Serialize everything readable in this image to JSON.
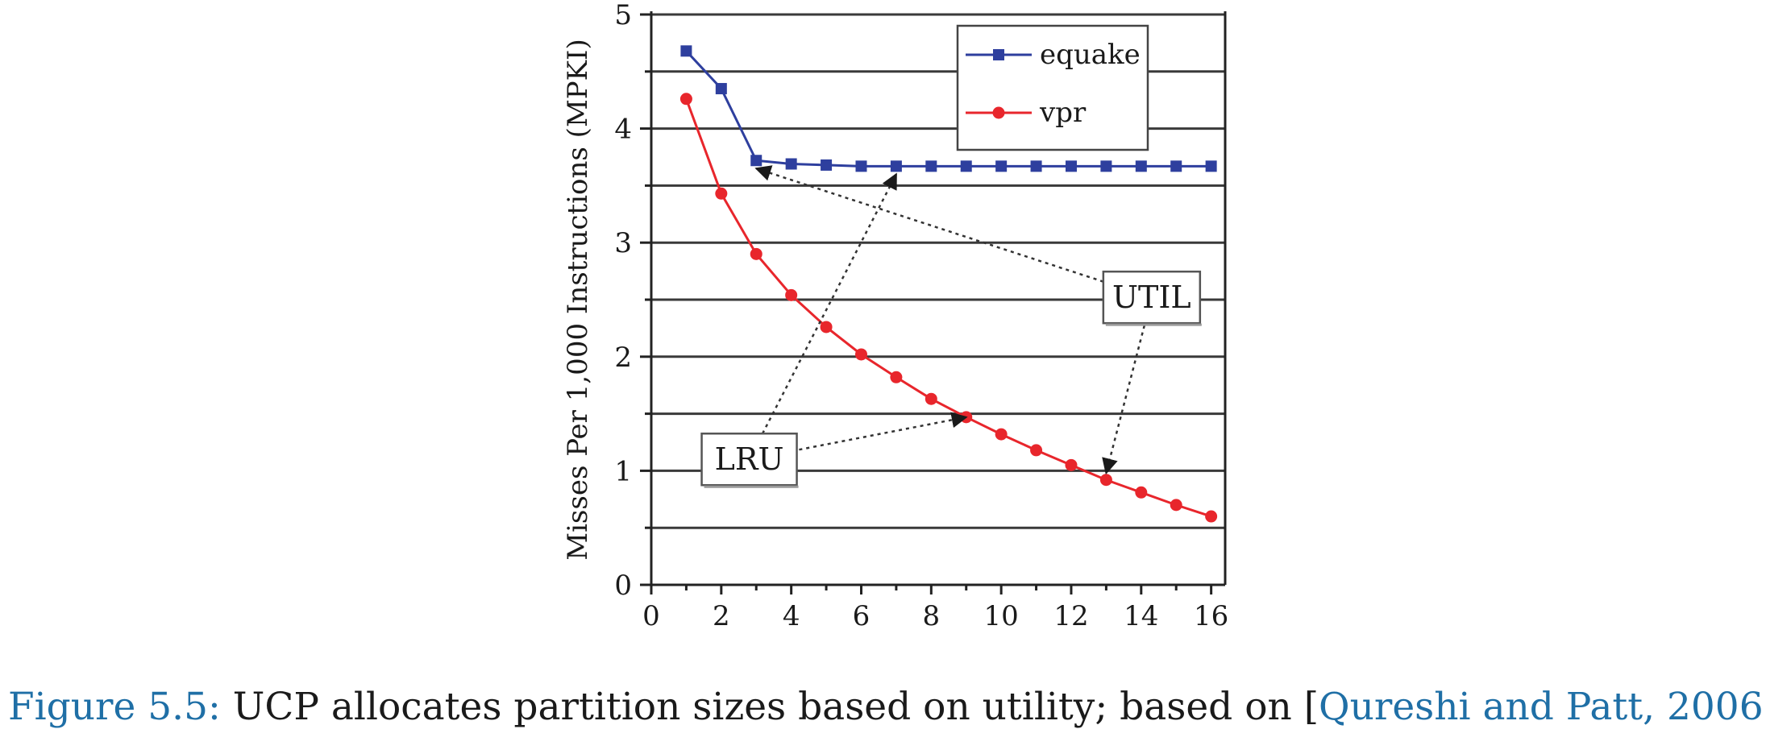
{
  "chart_data": {
    "type": "line",
    "title": "",
    "xlabel": "",
    "ylabel": "Misses Per 1,000 Instructions (MPKI)",
    "xlim": [
      0,
      16.4
    ],
    "ylim": [
      0,
      5
    ],
    "x_ticks": [
      0,
      2,
      4,
      6,
      8,
      10,
      12,
      14,
      16
    ],
    "y_ticks": [
      0,
      1,
      2,
      3,
      4,
      5
    ],
    "y_grid_step": 0.5,
    "grid": "horizontal",
    "legend_placement": "top-right",
    "series": [
      {
        "name": "equake",
        "color": "#2e3f9e",
        "marker": "square",
        "x": [
          1,
          2,
          3,
          4,
          5,
          6,
          7,
          8,
          9,
          10,
          11,
          12,
          13,
          14,
          15,
          16
        ],
        "values": [
          4.68,
          4.35,
          3.72,
          3.69,
          3.68,
          3.67,
          3.67,
          3.67,
          3.67,
          3.67,
          3.67,
          3.67,
          3.67,
          3.67,
          3.67,
          3.67
        ]
      },
      {
        "name": "vpr",
        "color": "#e8262c",
        "marker": "circle",
        "x": [
          1,
          2,
          3,
          4,
          5,
          6,
          7,
          8,
          9,
          10,
          11,
          12,
          13,
          14,
          15,
          16
        ],
        "values": [
          4.26,
          3.43,
          2.9,
          2.54,
          2.26,
          2.02,
          1.82,
          1.63,
          1.47,
          1.32,
          1.18,
          1.05,
          0.92,
          0.81,
          0.7,
          0.6
        ]
      }
    ],
    "annotations": [
      {
        "label": "UTIL",
        "box_anchor": [
          14.3,
          2.52
        ],
        "arrows_to": [
          [
            3,
            3.65
          ],
          [
            13,
            0.98
          ]
        ]
      },
      {
        "label": "LRU",
        "box_anchor": [
          2.8,
          1.1
        ],
        "arrows_to": [
          [
            7,
            3.6
          ],
          [
            9,
            1.47
          ]
        ]
      }
    ]
  },
  "caption": {
    "figure_number": "Figure 5.5:",
    "text_before": " UCP allocates partition sizes based on utility; based on [",
    "reference": "Qureshi and Patt, 2006",
    "text_after": "]."
  }
}
